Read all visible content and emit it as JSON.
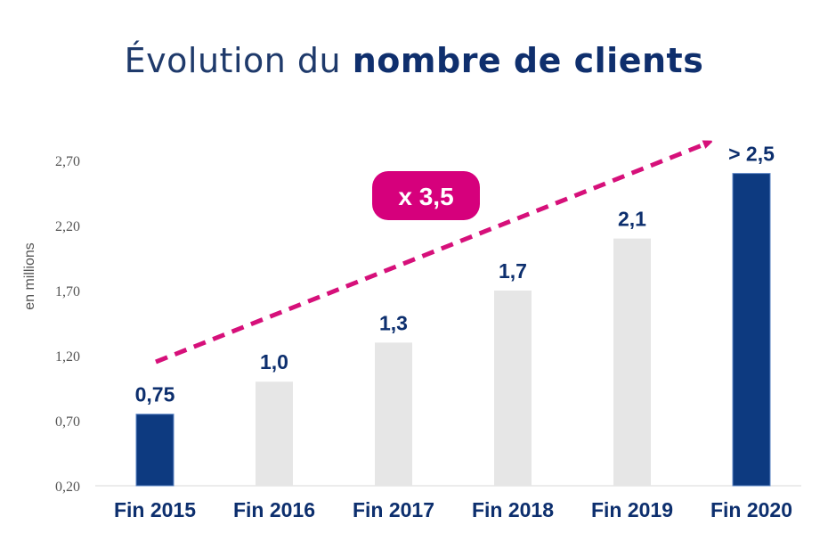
{
  "title": {
    "light": "Évolution du",
    "bold": "nombre de clients"
  },
  "annotation": {
    "label": "x 3,5",
    "color": "#d6007c"
  },
  "colors": {
    "highlight_bar": "#0d3a80",
    "regular_bar": "#e6e6e6",
    "text": "#0d2f6e",
    "arrow": "#d6107a"
  },
  "chart_data": {
    "type": "bar",
    "title": "Évolution du nombre de clients",
    "ylabel": "en millions",
    "xlabel": "",
    "categories": [
      "Fin 2015",
      "Fin 2016",
      "Fin 2017",
      "Fin 2018",
      "Fin 2019",
      "Fin 2020"
    ],
    "values": [
      0.75,
      1.0,
      1.3,
      1.7,
      2.1,
      2.6
    ],
    "data_labels": [
      "0,75",
      "1,0",
      "1,3",
      "1,7",
      "2,1",
      "> 2,5"
    ],
    "highlighted": [
      true,
      false,
      false,
      false,
      false,
      true
    ],
    "ylim": [
      0.2,
      2.7
    ],
    "yticks": [
      0.2,
      0.7,
      1.2,
      1.7,
      2.2,
      2.7
    ],
    "ytick_labels": [
      "0,20",
      "0,70",
      "1,20",
      "1,70",
      "2,20",
      "2,70"
    ],
    "grid": false,
    "legend": "none"
  }
}
